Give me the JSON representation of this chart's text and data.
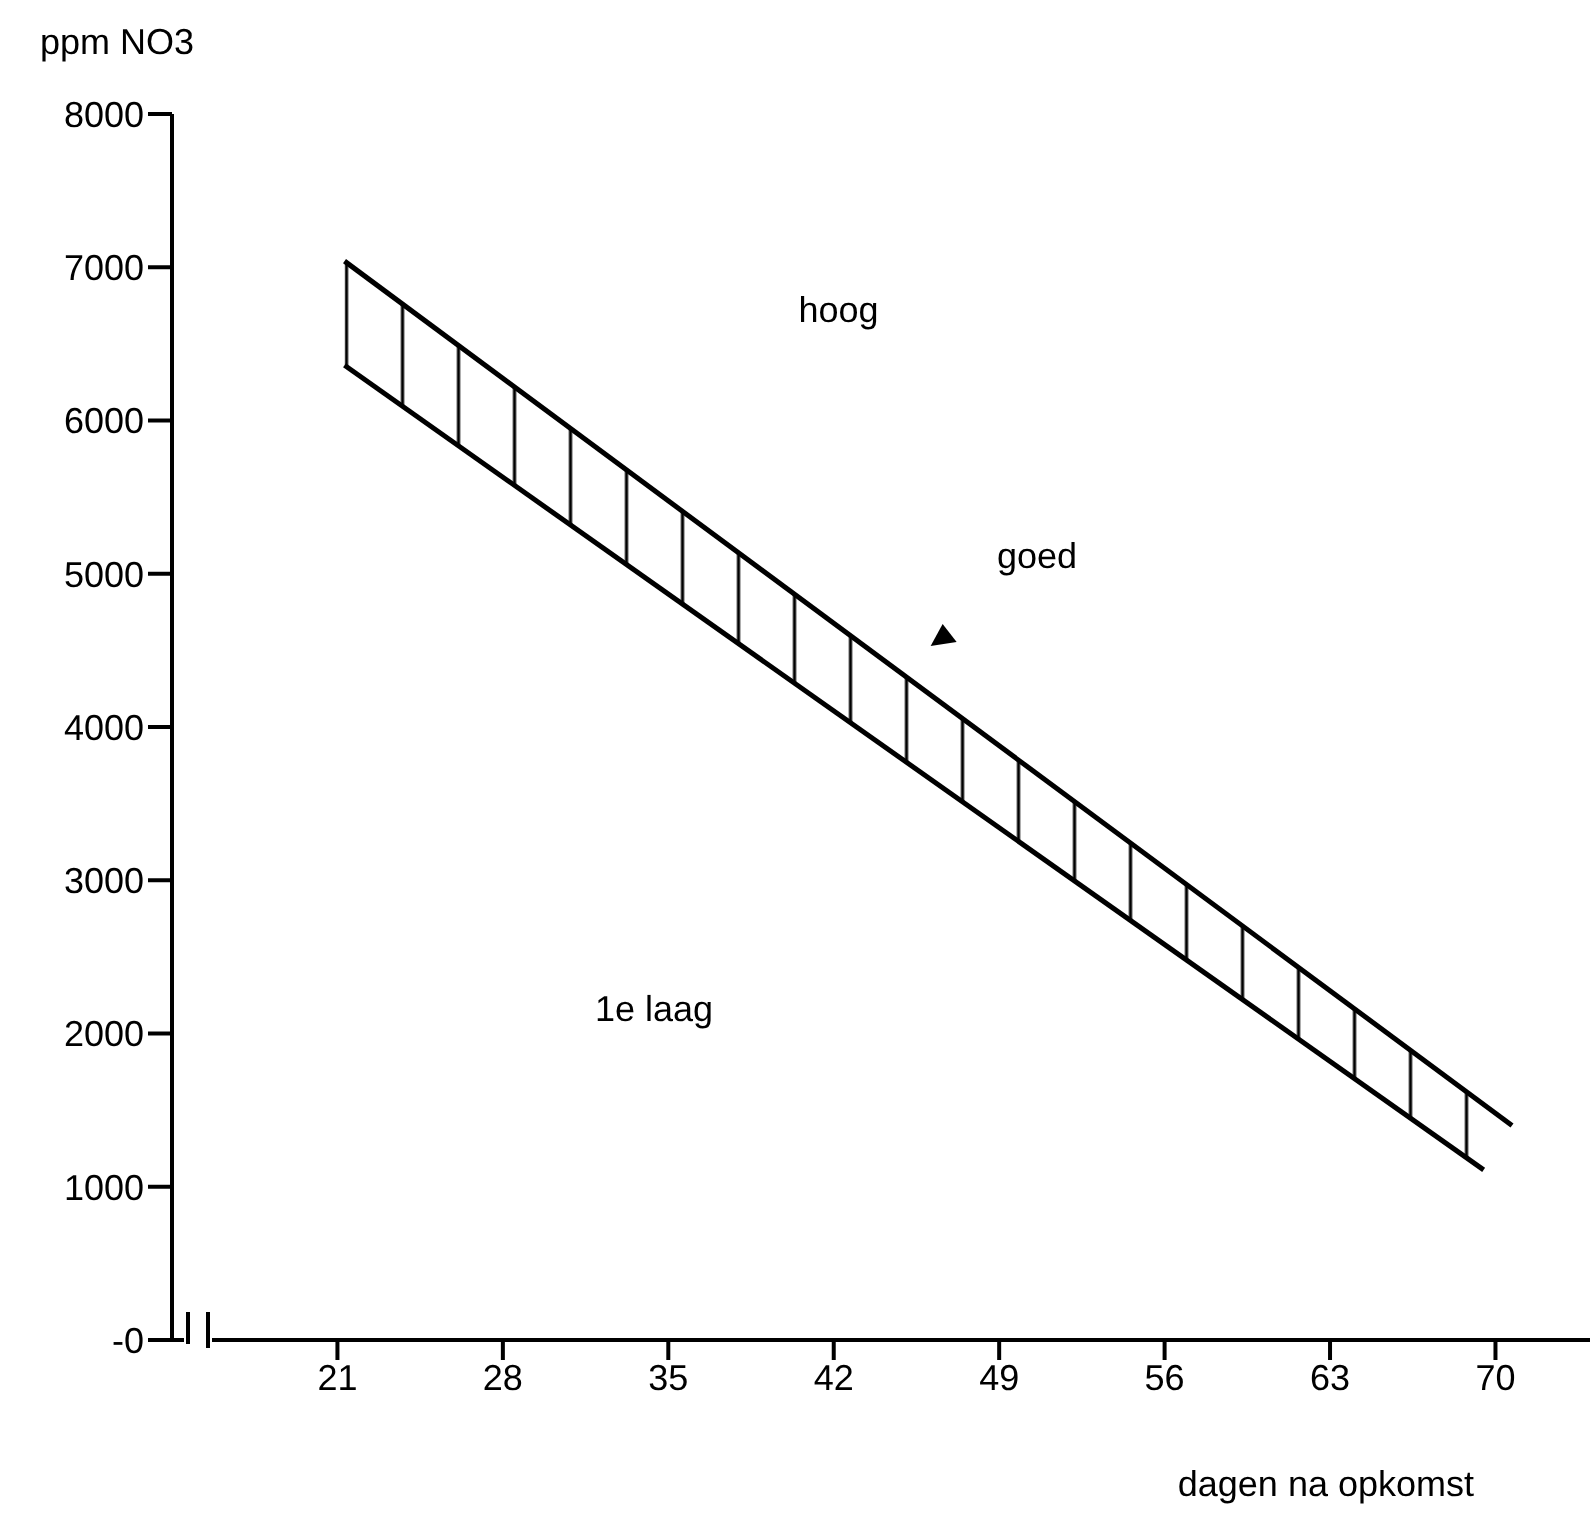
{
  "chart_data": {
    "type": "line",
    "xlabel": "dagen na opkomst",
    "ylabel": "ppm NO3",
    "xlim": [
      14,
      74
    ],
    "xticks": [
      21,
      28,
      35,
      42,
      49,
      56,
      63,
      70
    ],
    "ylim": [
      0,
      8000
    ],
    "yticks": [
      {
        "value": 0,
        "label": "-0"
      },
      1000,
      2000,
      3000,
      4000,
      5000,
      6000,
      7000,
      8000
    ],
    "series": [
      {
        "color": "#000000",
        "x": [
          21.3,
          70.7
        ],
        "values": [
          7040,
          1400
        ]
      },
      {
        "color": "#000000",
        "x": [
          21.3,
          69.5
        ],
        "values": [
          6360,
          1110
        ],
        "lower": [
          6360,
          1110
        ],
        "upper": [
          7040,
          1540
        ]
      }
    ],
    "annotations": [
      "hoog",
      "goed",
      "1e laag"
    ],
    "grid": false,
    "marker": "none",
    "line_style": "solid"
  }
}
